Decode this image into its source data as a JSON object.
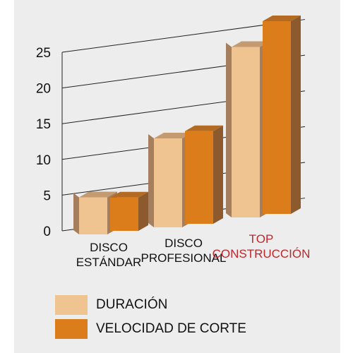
{
  "chart_data": {
    "type": "bar",
    "style": "3d-grouped",
    "categories": [
      {
        "lines": [
          "DISCO",
          "ESTÁNDAR"
        ],
        "highlight": false
      },
      {
        "lines": [
          "DISCO",
          "PROFESIONAL"
        ],
        "highlight": false
      },
      {
        "lines": [
          "TOP",
          "CONSTRUCCIÓN"
        ],
        "highlight": true
      }
    ],
    "series": [
      {
        "name": "DURACIÓN",
        "values": [
          5,
          12,
          23
        ],
        "color": "#f0c490",
        "side_color": "#a57f5d",
        "top_color": "#c49a71"
      },
      {
        "name": "VELOCIDAD DE CORTE",
        "values": [
          4.5,
          12.5,
          26
        ],
        "color": "#dc7d1c",
        "side_color": "#8c5a2c",
        "top_color": "#b36a22"
      }
    ],
    "y_ticks": [
      "0",
      "5",
      "10",
      "15",
      "20",
      "25"
    ],
    "ylim": [
      0,
      25
    ],
    "grid": true,
    "legend_position": "bottom-left",
    "colors": {
      "highlight_label": "#c0272d",
      "label": "#111111",
      "grid": "#222222",
      "background": "#ededed"
    }
  }
}
